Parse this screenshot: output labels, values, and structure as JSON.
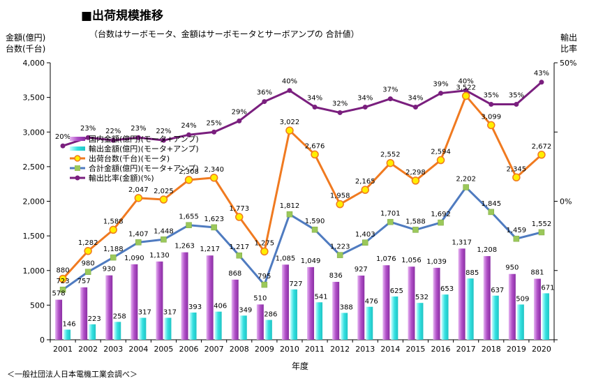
{
  "title": "■出荷規模推移",
  "subtitle": "（台数はサーボモータ、金額はサーボモータとサーボアンプの 合計値）",
  "y_left_label_line1": "金額(億円)",
  "y_left_label_line2": "台数(千台)",
  "y_right_label_line1": "輸出",
  "y_right_label_line2": "比率",
  "x_axis_title": "年度",
  "source": "＜一般社団法人日本電機工業会調べ＞",
  "chart_data": {
    "type": "bar",
    "categories": [
      "2001",
      "2002",
      "2003",
      "2004",
      "2005",
      "2006",
      "2007",
      "2008",
      "2009",
      "2010",
      "2011",
      "2012",
      "2013",
      "2014",
      "2015",
      "2016",
      "2017",
      "2018",
      "2019",
      "2020"
    ],
    "ylim": [
      0,
      4000
    ],
    "y_ticks": [
      "0",
      "500",
      "1,000",
      "1,500",
      "2,000",
      "2,500",
      "3,000",
      "3,500",
      "4,000"
    ],
    "y_tick_values": [
      0,
      500,
      1000,
      1500,
      2000,
      2500,
      3000,
      3500,
      4000
    ],
    "y2_ticks": [
      "0%",
      "50%"
    ],
    "y2_tick_values": [
      0,
      50
    ],
    "y2lim": [
      -50,
      50
    ],
    "legend": [
      {
        "key": "domestic",
        "label": "国内金額(億円)(モータ+アンプ)"
      },
      {
        "key": "export",
        "label": "輸出金額(億円)(モータ+アンプ)"
      },
      {
        "key": "units",
        "label": "出荷台数(千台)(モータ)"
      },
      {
        "key": "total",
        "label": "合計金額(億円)(モータ+アンプ)"
      },
      {
        "key": "ratio",
        "label": "輸出比率(金額)(%)"
      }
    ],
    "series": [
      {
        "key": "domestic",
        "name": "国内金額(億円)(モータ+アンプ)",
        "type": "bar",
        "color": "#b04fc7",
        "values": [
          578,
          757,
          930,
          1090,
          1130,
          1263,
          1217,
          868,
          510,
          1085,
          1049,
          836,
          927,
          1076,
          1056,
          1039,
          1317,
          1208,
          950,
          881
        ],
        "labels": [
          "578",
          "757",
          "930",
          "1,090",
          "1,130",
          "1,263",
          "1,217",
          "868",
          "510",
          "1,085",
          "1,049",
          "836",
          "927",
          "1,076",
          "1,056",
          "1,039",
          "1,317",
          "1,208",
          "950",
          "881"
        ]
      },
      {
        "key": "export",
        "name": "輸出金額(億円)(モータ+アンプ)",
        "type": "bar",
        "color": "#33e0e0",
        "values": [
          146,
          223,
          258,
          317,
          317,
          393,
          406,
          349,
          286,
          727,
          541,
          388,
          476,
          625,
          532,
          653,
          885,
          637,
          509,
          671
        ],
        "labels": [
          "146",
          "223",
          "258",
          "317",
          "317",
          "393",
          "406",
          "349",
          "286",
          "727",
          "541",
          "388",
          "476",
          "625",
          "532",
          "653",
          "885",
          "637",
          "509",
          "671"
        ]
      },
      {
        "key": "units",
        "name": "出荷台数(千台)(モータ)",
        "type": "line",
        "color": "#f07a20",
        "marker_color": "#ffee00",
        "values": [
          880,
          1282,
          1588,
          2047,
          2025,
          2308,
          2340,
          1773,
          1275,
          3022,
          2676,
          1958,
          2165,
          2552,
          2298,
          2594,
          3522,
          3099,
          2345,
          2672
        ],
        "labels": [
          "880",
          "1,282",
          "1,588",
          "2,047",
          "2,025",
          "2,308",
          "2,340",
          "1,773",
          "1,275",
          "3,022",
          "2,676",
          "1,958",
          "2,165",
          "2,552",
          "2,298",
          "2,594",
          "3,522",
          "3,099",
          "2,345",
          "2,672"
        ]
      },
      {
        "key": "total",
        "name": "合計金額(億円)(モータ+アンプ)",
        "type": "line",
        "color": "#4f7bc0",
        "marker_color": "#9bc85a",
        "values": [
          723,
          980,
          1188,
          1407,
          1448,
          1655,
          1623,
          1217,
          795,
          1812,
          1590,
          1223,
          1403,
          1701,
          1588,
          1692,
          2202,
          1845,
          1459,
          1552
        ],
        "labels": [
          "723",
          "980",
          "1,188",
          "1,407",
          "1,448",
          "1,655",
          "1,623",
          "1,217",
          "795",
          "1,812",
          "1,590",
          "1,223",
          "1,403",
          "1,701",
          "1,588",
          "1,692",
          "2,202",
          "1,845",
          "1,459",
          "1,552"
        ]
      },
      {
        "key": "ratio",
        "name": "輸出比率(金額)(%)",
        "type": "line",
        "color": "#7a1f7e",
        "marker_color": "#7a1f7e",
        "axis": "right",
        "values": [
          20,
          23,
          22,
          23,
          22,
          24,
          25,
          29,
          36,
          40,
          34,
          32,
          34,
          37,
          34,
          39,
          40,
          35,
          35,
          43
        ],
        "labels": [
          "20%",
          "23%",
          "22%",
          "23%",
          "22%",
          "24%",
          "25%",
          "29%",
          "36%",
          "40%",
          "34%",
          "32%",
          "34%",
          "37%",
          "34%",
          "39%",
          "40%",
          "35%",
          "35%",
          "43%"
        ]
      }
    ]
  }
}
